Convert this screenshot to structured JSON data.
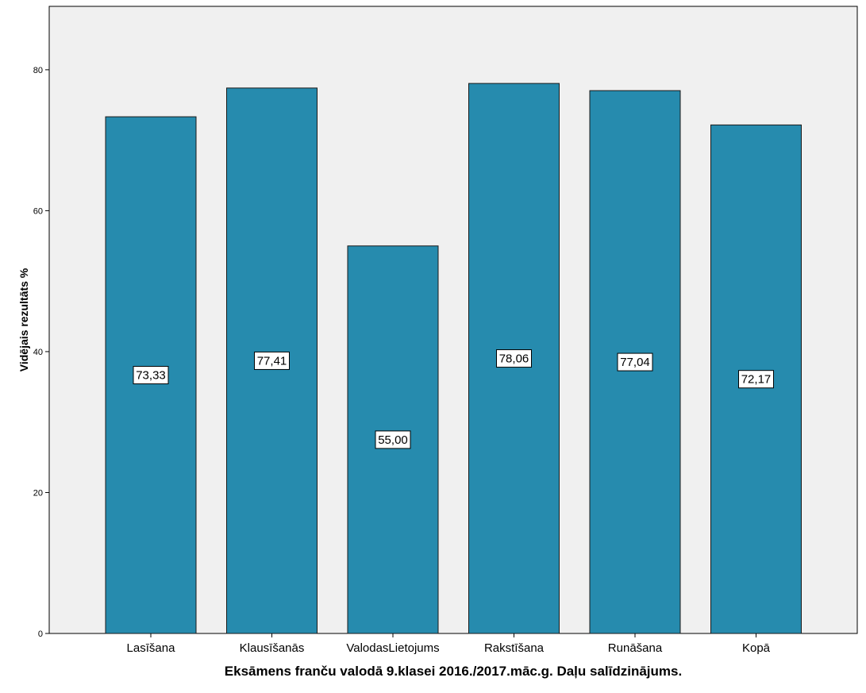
{
  "chart_data": {
    "type": "bar",
    "categories": [
      "Lasīšana",
      "Klausīšanās",
      "ValodasLietojums",
      "Rakstīšana",
      "Runāšana",
      "Kopā"
    ],
    "values": [
      73.33,
      77.41,
      55.0,
      78.06,
      77.04,
      72.17
    ],
    "data_labels": [
      "73,33",
      "77,41",
      "55,00",
      "78,06",
      "77,04",
      "72,17"
    ],
    "title": "",
    "xlabel": "Eksāmens franču valodā 9.klasei 2016./2017.māc.g. Daļu salīdzinājums.",
    "ylabel": "Vidējais rezultāts %",
    "ylim": [
      0,
      89
    ],
    "yticks": [
      0,
      20,
      40,
      60,
      80
    ],
    "grid": false,
    "legend": "none",
    "colors": {
      "bar_fill": "#268BAE",
      "bar_stroke": "#1a1a1a",
      "plot_background": "#F0F0F0",
      "label_box": "#FFFFFF"
    }
  }
}
